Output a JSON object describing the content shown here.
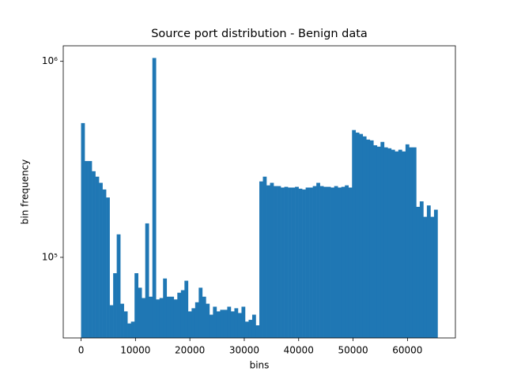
{
  "chart_data": {
    "type": "histogram",
    "title": "Source port distribution - Benign data",
    "x_label": "bins",
    "y_label": "bin frequency",
    "color": "#1f77b4",
    "log_y": true,
    "bins": [
      0,
      655.35,
      1310.7,
      1966.05,
      2621.4,
      3276.75,
      3932.1,
      4587.45,
      5242.8,
      5898.15,
      6553.5,
      7208.85,
      7864.2,
      8519.55,
      9174.9,
      9830.25,
      10485.6,
      11140.95,
      11796.3,
      12451.65,
      13107,
      13762.35,
      14417.7,
      15073.05,
      15728.4,
      16383.75,
      17039.1,
      17694.45,
      18349.8,
      19005.15,
      19660.5,
      20315.85,
      20971.2,
      21626.55,
      22281.9,
      22937.25,
      23592.6,
      24247.95,
      24903.3,
      25558.65,
      26214,
      26869.35,
      27524.7,
      28180.05,
      28835.4,
      29490.75,
      30146.1,
      30801.45,
      31456.8,
      32112.15,
      32767.5,
      33422.85,
      34078.2,
      34733.55,
      35388.9,
      36044.25,
      36699.6,
      37354.95,
      38010.3,
      38665.65,
      39321,
      39976.35,
      40631.7,
      41287.05,
      41942.4,
      42597.75,
      43253.1,
      43908.45,
      44563.8,
      45219.15,
      45874.5,
      46529.85,
      47185.2,
      47840.55,
      48495.9,
      49151.25,
      49806.6,
      50461.95,
      51117.3,
      51772.65,
      52428,
      53083.35,
      53738.7,
      54394.05,
      55049.4,
      55704.75,
      56360.1,
      57015.45,
      57670.8,
      58326.15,
      58981.5,
      59636.85,
      60292.2,
      60947.55,
      61602.9,
      62258.25,
      62913.6,
      63568.95,
      64224.3,
      64879.65,
      65535
    ],
    "values": [
      484000,
      310000,
      310000,
      275000,
      258000,
      240000,
      222000,
      202000,
      57000,
      83000,
      131000,
      58000,
      53000,
      46000,
      47000,
      83000,
      70000,
      62000,
      149000,
      63000,
      1040000,
      61000,
      62000,
      78000,
      63000,
      63000,
      61000,
      66000,
      68000,
      76000,
      53000,
      55000,
      59000,
      70000,
      63000,
      58000,
      51000,
      56000,
      53000,
      54000,
      54000,
      56000,
      53000,
      55000,
      52000,
      56000,
      47000,
      48000,
      51000,
      45000,
      244000,
      258000,
      233000,
      240000,
      231000,
      231000,
      227000,
      229000,
      227000,
      227000,
      229000,
      224000,
      222000,
      227000,
      227000,
      231000,
      240000,
      231000,
      229000,
      229000,
      227000,
      231000,
      227000,
      229000,
      233000,
      227000,
      446000,
      433000,
      426000,
      414000,
      399000,
      395000,
      373000,
      367000,
      388000,
      364000,
      360000,
      354000,
      347000,
      354000,
      347000,
      377000,
      364000,
      364000,
      181000,
      193000,
      161000,
      184000,
      161000,
      175000
    ],
    "xlim": [
      -3276.75,
      68811.75
    ],
    "ylim": [
      38800,
      1200000
    ],
    "xticks": [
      0,
      10000,
      20000,
      30000,
      40000,
      50000,
      60000
    ],
    "yticks": [
      {
        "value": 100000,
        "label": "10⁵"
      },
      {
        "value": 1000000,
        "label": "10⁶"
      }
    ]
  }
}
